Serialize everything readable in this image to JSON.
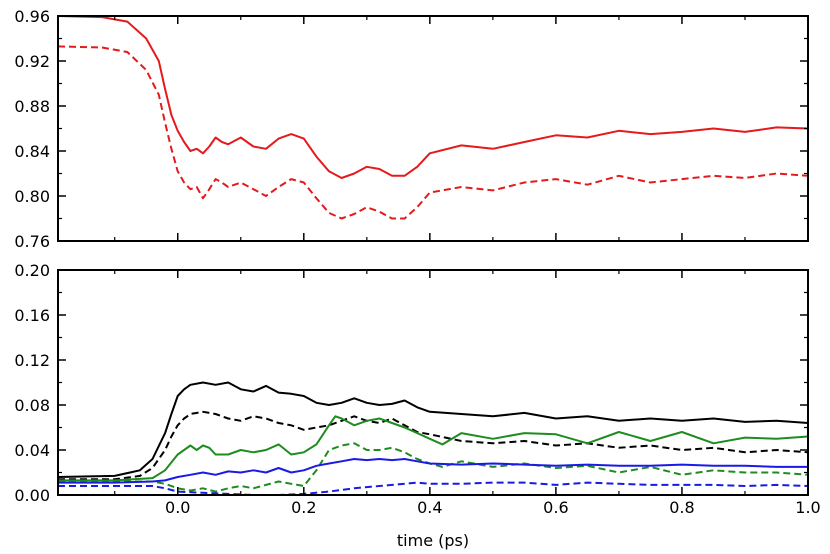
{
  "chart_data": [
    {
      "type": "line",
      "xlabel": "",
      "ylabel": "",
      "xlim": [
        -0.19,
        1.0
      ],
      "ylim": [
        0.76,
        0.96
      ],
      "xticks": [
        0.0,
        0.2,
        0.4,
        0.6,
        0.8,
        1.0
      ],
      "yticks": [
        0.76,
        0.8,
        0.84,
        0.88,
        0.92,
        0.96
      ],
      "ytick_labels": [
        "0.76",
        "0.80",
        "0.84",
        "0.88",
        "0.92",
        "0.96"
      ],
      "grid": false,
      "series": [
        {
          "color": "#e41a1c",
          "style": "solid",
          "x": [
            -0.19,
            -0.12,
            -0.08,
            -0.05,
            -0.03,
            -0.02,
            -0.01,
            0.0,
            0.01,
            0.02,
            0.03,
            0.04,
            0.05,
            0.06,
            0.07,
            0.08,
            0.1,
            0.12,
            0.14,
            0.16,
            0.18,
            0.2,
            0.22,
            0.24,
            0.26,
            0.28,
            0.3,
            0.32,
            0.34,
            0.36,
            0.38,
            0.4,
            0.45,
            0.5,
            0.55,
            0.6,
            0.65,
            0.7,
            0.75,
            0.8,
            0.85,
            0.9,
            0.95,
            1.0
          ],
          "y": [
            0.96,
            0.959,
            0.955,
            0.94,
            0.92,
            0.895,
            0.872,
            0.858,
            0.848,
            0.84,
            0.842,
            0.838,
            0.844,
            0.852,
            0.848,
            0.846,
            0.852,
            0.844,
            0.842,
            0.851,
            0.855,
            0.851,
            0.835,
            0.822,
            0.816,
            0.82,
            0.826,
            0.824,
            0.818,
            0.818,
            0.826,
            0.838,
            0.845,
            0.842,
            0.848,
            0.854,
            0.852,
            0.858,
            0.855,
            0.857,
            0.86,
            0.857,
            0.861,
            0.86
          ]
        },
        {
          "color": "#e41a1c",
          "style": "dashed",
          "x": [
            -0.19,
            -0.12,
            -0.08,
            -0.05,
            -0.03,
            -0.02,
            -0.01,
            0.0,
            0.01,
            0.02,
            0.03,
            0.04,
            0.05,
            0.06,
            0.07,
            0.08,
            0.1,
            0.12,
            0.14,
            0.16,
            0.18,
            0.2,
            0.22,
            0.24,
            0.26,
            0.28,
            0.3,
            0.32,
            0.34,
            0.36,
            0.38,
            0.4,
            0.45,
            0.5,
            0.55,
            0.6,
            0.65,
            0.7,
            0.75,
            0.8,
            0.85,
            0.9,
            0.95,
            1.0
          ],
          "y": [
            0.933,
            0.932,
            0.928,
            0.912,
            0.89,
            0.865,
            0.842,
            0.822,
            0.812,
            0.806,
            0.808,
            0.798,
            0.806,
            0.815,
            0.812,
            0.808,
            0.812,
            0.806,
            0.8,
            0.808,
            0.815,
            0.812,
            0.798,
            0.785,
            0.78,
            0.784,
            0.79,
            0.786,
            0.78,
            0.78,
            0.79,
            0.803,
            0.808,
            0.805,
            0.812,
            0.815,
            0.81,
            0.818,
            0.812,
            0.815,
            0.818,
            0.816,
            0.82,
            0.818
          ]
        }
      ]
    },
    {
      "type": "line",
      "xlabel": "time (ps)",
      "ylabel": "",
      "xlim": [
        -0.19,
        1.0
      ],
      "ylim": [
        0.0,
        0.2
      ],
      "xticks": [
        0.0,
        0.2,
        0.4,
        0.6,
        0.8,
        1.0
      ],
      "xtick_labels": [
        "0.0",
        "0.2",
        "0.4",
        "0.6",
        "0.8",
        "1.0"
      ],
      "yticks": [
        0.0,
        0.04,
        0.08,
        0.12,
        0.16,
        0.2
      ],
      "ytick_labels": [
        "0.00",
        "0.04",
        "0.08",
        "0.12",
        "0.16",
        "0.20"
      ],
      "grid": false,
      "series": [
        {
          "color": "#000000",
          "style": "solid",
          "x": [
            -0.19,
            -0.1,
            -0.06,
            -0.04,
            -0.02,
            -0.01,
            0.0,
            0.01,
            0.02,
            0.04,
            0.06,
            0.08,
            0.1,
            0.12,
            0.14,
            0.16,
            0.18,
            0.2,
            0.22,
            0.24,
            0.26,
            0.28,
            0.3,
            0.32,
            0.34,
            0.36,
            0.38,
            0.4,
            0.45,
            0.5,
            0.55,
            0.6,
            0.65,
            0.7,
            0.75,
            0.8,
            0.85,
            0.9,
            0.95,
            1.0
          ],
          "y": [
            0.016,
            0.017,
            0.022,
            0.032,
            0.055,
            0.072,
            0.088,
            0.094,
            0.098,
            0.1,
            0.098,
            0.1,
            0.094,
            0.092,
            0.097,
            0.091,
            0.09,
            0.088,
            0.082,
            0.08,
            0.082,
            0.086,
            0.082,
            0.08,
            0.081,
            0.084,
            0.078,
            0.074,
            0.072,
            0.07,
            0.073,
            0.068,
            0.07,
            0.066,
            0.068,
            0.066,
            0.068,
            0.065,
            0.066,
            0.064
          ]
        },
        {
          "color": "#000000",
          "style": "dashed",
          "x": [
            -0.19,
            -0.1,
            -0.06,
            -0.04,
            -0.02,
            -0.01,
            0.0,
            0.01,
            0.02,
            0.04,
            0.06,
            0.08,
            0.1,
            0.12,
            0.14,
            0.16,
            0.18,
            0.2,
            0.22,
            0.24,
            0.26,
            0.28,
            0.3,
            0.32,
            0.34,
            0.36,
            0.38,
            0.4,
            0.45,
            0.5,
            0.55,
            0.6,
            0.65,
            0.7,
            0.75,
            0.8,
            0.85,
            0.9,
            0.95,
            1.0
          ],
          "y": [
            0.014,
            0.014,
            0.017,
            0.024,
            0.04,
            0.052,
            0.062,
            0.068,
            0.072,
            0.074,
            0.072,
            0.068,
            0.066,
            0.07,
            0.068,
            0.064,
            0.062,
            0.058,
            0.06,
            0.062,
            0.066,
            0.07,
            0.066,
            0.064,
            0.068,
            0.062,
            0.056,
            0.054,
            0.048,
            0.046,
            0.048,
            0.044,
            0.046,
            0.042,
            0.044,
            0.04,
            0.042,
            0.038,
            0.04,
            0.038
          ]
        },
        {
          "color": "#1e8c1e",
          "style": "solid",
          "x": [
            -0.19,
            -0.1,
            -0.04,
            -0.02,
            0.0,
            0.01,
            0.02,
            0.03,
            0.04,
            0.05,
            0.06,
            0.08,
            0.1,
            0.12,
            0.14,
            0.16,
            0.18,
            0.2,
            0.22,
            0.24,
            0.25,
            0.26,
            0.28,
            0.3,
            0.32,
            0.34,
            0.36,
            0.38,
            0.4,
            0.42,
            0.45,
            0.5,
            0.55,
            0.6,
            0.65,
            0.7,
            0.75,
            0.8,
            0.85,
            0.9,
            0.95,
            1.0
          ],
          "y": [
            0.013,
            0.013,
            0.015,
            0.022,
            0.036,
            0.04,
            0.044,
            0.04,
            0.044,
            0.042,
            0.036,
            0.036,
            0.04,
            0.038,
            0.04,
            0.045,
            0.036,
            0.038,
            0.045,
            0.062,
            0.07,
            0.068,
            0.062,
            0.066,
            0.068,
            0.064,
            0.06,
            0.055,
            0.05,
            0.045,
            0.055,
            0.05,
            0.055,
            0.054,
            0.046,
            0.056,
            0.048,
            0.056,
            0.046,
            0.051,
            0.05,
            0.052
          ]
        },
        {
          "color": "#1e8c1e",
          "style": "dashed",
          "x": [
            -0.19,
            -0.1,
            -0.04,
            -0.02,
            0.0,
            0.02,
            0.04,
            0.06,
            0.08,
            0.1,
            0.12,
            0.14,
            0.16,
            0.18,
            0.2,
            0.22,
            0.24,
            0.26,
            0.28,
            0.3,
            0.32,
            0.34,
            0.36,
            0.38,
            0.4,
            0.42,
            0.45,
            0.5,
            0.55,
            0.6,
            0.65,
            0.7,
            0.75,
            0.8,
            0.85,
            0.9,
            0.95,
            1.0
          ],
          "y": [
            0.012,
            0.012,
            0.012,
            0.01,
            0.006,
            0.004,
            0.006,
            0.003,
            0.006,
            0.008,
            0.006,
            0.009,
            0.012,
            0.01,
            0.008,
            0.022,
            0.04,
            0.044,
            0.046,
            0.04,
            0.04,
            0.042,
            0.038,
            0.032,
            0.028,
            0.025,
            0.03,
            0.025,
            0.028,
            0.024,
            0.026,
            0.02,
            0.025,
            0.018,
            0.022,
            0.02,
            0.02,
            0.018
          ]
        },
        {
          "color": "#1a1ae6",
          "style": "solid",
          "x": [
            -0.19,
            -0.1,
            -0.04,
            -0.02,
            0.0,
            0.02,
            0.04,
            0.06,
            0.08,
            0.1,
            0.12,
            0.14,
            0.16,
            0.18,
            0.2,
            0.22,
            0.24,
            0.26,
            0.28,
            0.3,
            0.32,
            0.34,
            0.36,
            0.38,
            0.4,
            0.45,
            0.5,
            0.55,
            0.6,
            0.65,
            0.7,
            0.75,
            0.8,
            0.85,
            0.9,
            0.95,
            1.0
          ],
          "y": [
            0.011,
            0.011,
            0.012,
            0.013,
            0.016,
            0.018,
            0.02,
            0.018,
            0.021,
            0.02,
            0.022,
            0.02,
            0.024,
            0.02,
            0.022,
            0.026,
            0.028,
            0.03,
            0.032,
            0.031,
            0.032,
            0.031,
            0.032,
            0.03,
            0.028,
            0.027,
            0.028,
            0.027,
            0.026,
            0.027,
            0.026,
            0.026,
            0.027,
            0.026,
            0.026,
            0.025,
            0.025
          ]
        },
        {
          "color": "#1a1ae6",
          "style": "dashed",
          "x": [
            -0.19,
            -0.1,
            -0.04,
            -0.02,
            0.0,
            0.04,
            0.08,
            0.12,
            0.16,
            0.2,
            0.24,
            0.28,
            0.3,
            0.34,
            0.38,
            0.4,
            0.45,
            0.5,
            0.55,
            0.6,
            0.65,
            0.7,
            0.75,
            0.8,
            0.85,
            0.9,
            0.95,
            1.0
          ],
          "y": [
            0.008,
            0.008,
            0.008,
            0.006,
            0.003,
            0.002,
            0.001,
            0.0,
            0.0,
            0.001,
            0.003,
            0.006,
            0.007,
            0.009,
            0.011,
            0.01,
            0.01,
            0.011,
            0.011,
            0.009,
            0.011,
            0.01,
            0.009,
            0.009,
            0.009,
            0.008,
            0.009,
            0.008
          ]
        }
      ]
    }
  ]
}
